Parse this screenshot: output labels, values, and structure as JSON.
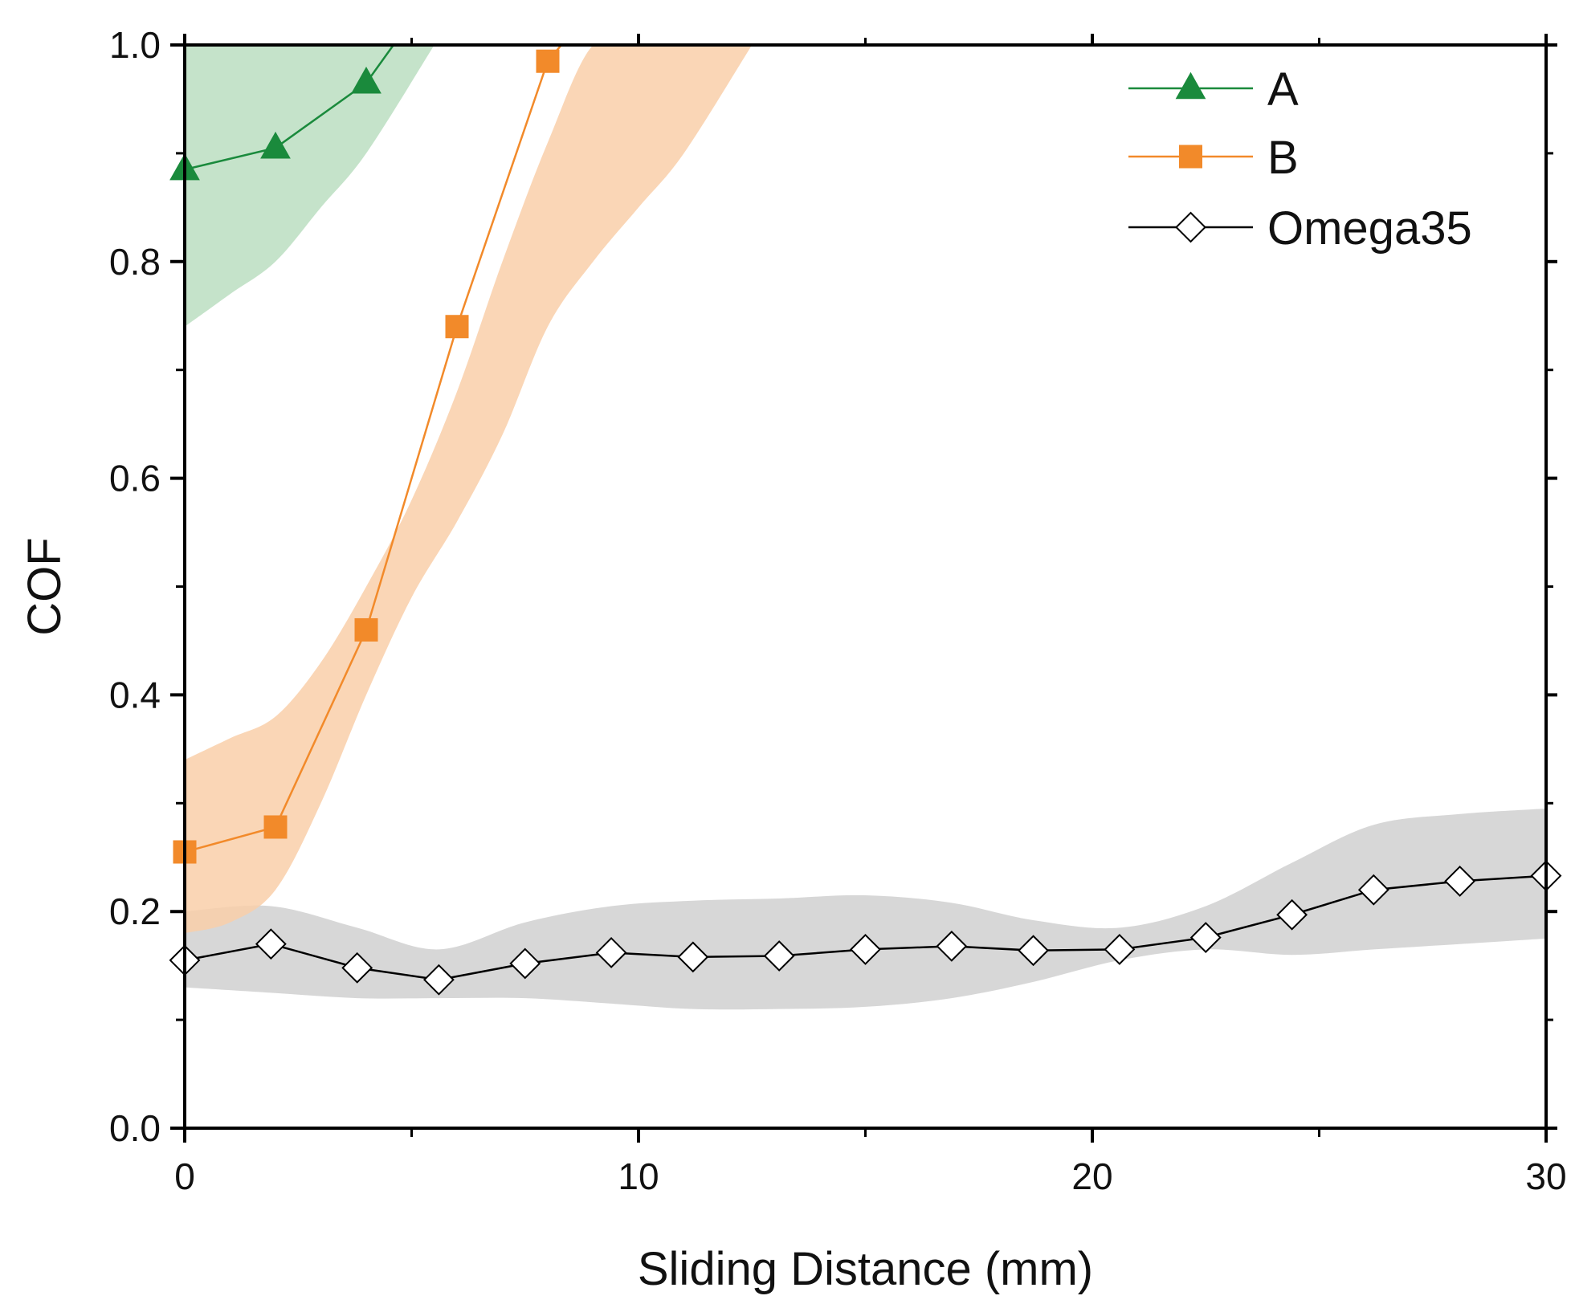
{
  "chart_data": {
    "type": "line",
    "title": "",
    "xlabel": "Sliding Distance (mm)",
    "ylabel": "COF",
    "xlim": [
      0,
      30
    ],
    "ylim": [
      0,
      1.0
    ],
    "xticks": [
      0,
      10,
      20,
      30
    ],
    "xtick_labels": [
      "0",
      "10",
      "20",
      "30"
    ],
    "yticks": [
      0.0,
      0.2,
      0.4,
      0.6,
      0.8,
      1.0
    ],
    "ytick_labels": [
      "0.0",
      "0.2",
      "0.4",
      "0.6",
      "0.8",
      "1.0"
    ],
    "grid": false,
    "legend_position": "top-right",
    "series": [
      {
        "name": "A",
        "color": "#1a8a3c",
        "band_color": "#bfe0c4",
        "marker": "triangle",
        "x": [
          0,
          2,
          4,
          4.6
        ],
        "values": [
          0.885,
          0.905,
          0.965,
          1.0
        ],
        "band_x": [
          0,
          1,
          2,
          3,
          4,
          5.5
        ],
        "band_low": [
          0.74,
          0.77,
          0.8,
          0.85,
          0.9,
          1.0
        ],
        "band_high": [
          1.0,
          1.0,
          1.0,
          1.0,
          1.0,
          1.0
        ]
      },
      {
        "name": "B",
        "color": "#f28a2a",
        "band_color": "#f9cfa9",
        "marker": "square",
        "x": [
          0,
          2,
          4,
          6,
          8,
          8.3
        ],
        "values": [
          0.255,
          0.278,
          0.46,
          0.74,
          0.985,
          1.0
        ],
        "band_x": [
          0,
          1,
          2,
          3,
          4,
          5,
          6,
          7,
          8,
          9,
          10,
          11,
          12.5
        ],
        "band_low": [
          0.18,
          0.19,
          0.22,
          0.3,
          0.4,
          0.49,
          0.56,
          0.64,
          0.74,
          0.8,
          0.85,
          0.9,
          1.0
        ],
        "band_high": [
          0.34,
          0.36,
          0.38,
          0.43,
          0.5,
          0.58,
          0.68,
          0.8,
          0.91,
          1.0,
          1.0,
          1.0,
          1.0
        ]
      },
      {
        "name": "Omega35",
        "color": "#000000",
        "band_color": "#d3d3d3",
        "marker": "diamond",
        "x": [
          0,
          1.9,
          3.8,
          5.6,
          7.5,
          9.4,
          11.2,
          13.1,
          15.0,
          16.9,
          18.7,
          20.6,
          22.5,
          24.4,
          26.2,
          28.1,
          30.0
        ],
        "values": [
          0.155,
          0.17,
          0.148,
          0.137,
          0.152,
          0.162,
          0.158,
          0.159,
          0.165,
          0.168,
          0.164,
          0.165,
          0.176,
          0.197,
          0.22,
          0.228,
          0.233
        ],
        "band_x": [
          0,
          1.9,
          3.8,
          5.6,
          7.5,
          9.4,
          11.2,
          13.1,
          15.0,
          16.9,
          18.7,
          20.6,
          22.5,
          24.4,
          26.2,
          28.1,
          30.0
        ],
        "band_low": [
          0.13,
          0.125,
          0.12,
          0.12,
          0.12,
          0.115,
          0.11,
          0.11,
          0.112,
          0.12,
          0.135,
          0.155,
          0.165,
          0.16,
          0.165,
          0.17,
          0.175
        ],
        "band_high": [
          0.2,
          0.205,
          0.185,
          0.165,
          0.19,
          0.205,
          0.21,
          0.212,
          0.215,
          0.208,
          0.192,
          0.185,
          0.205,
          0.245,
          0.28,
          0.29,
          0.295
        ]
      }
    ]
  }
}
